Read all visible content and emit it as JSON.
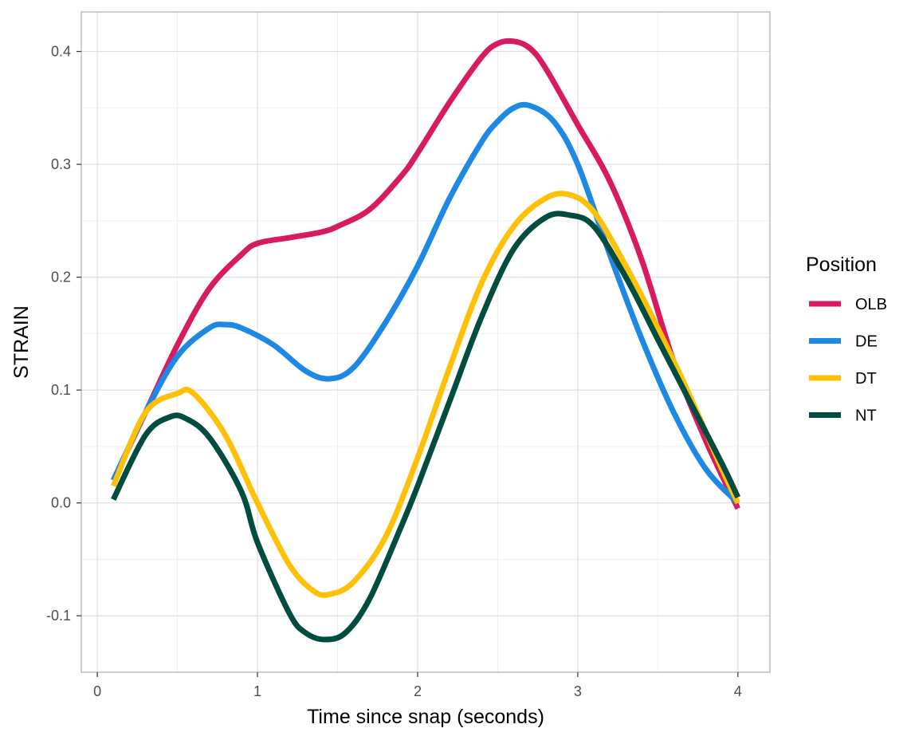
{
  "chart_data": {
    "type": "line",
    "xlabel": "Time since snap (seconds)",
    "ylabel": "STRAIN",
    "xlim": [
      -0.1,
      4.2
    ],
    "ylim": [
      -0.15,
      0.435
    ],
    "xticks": [
      0,
      1,
      2,
      3,
      4
    ],
    "xtick_labels": [
      "0",
      "1",
      "2",
      "3",
      "4"
    ],
    "yticks": [
      -0.1,
      0.0,
      0.1,
      0.2,
      0.3,
      0.4
    ],
    "ytick_labels": [
      "-0.1",
      "0.0",
      "0.1",
      "0.2",
      "0.3",
      "0.4"
    ],
    "grid": true,
    "legend_title": "Position",
    "legend_position": "right",
    "series": [
      {
        "name": "OLB",
        "color": "#D81B60",
        "x": [
          0.1,
          0.3,
          0.5,
          0.7,
          0.9,
          1.0,
          1.2,
          1.4,
          1.5,
          1.7,
          1.9,
          2.0,
          2.2,
          2.4,
          2.5,
          2.6,
          2.7,
          2.8,
          3.0,
          3.2,
          3.4,
          3.6,
          3.8,
          4.0
        ],
        "y": [
          0.02,
          0.08,
          0.14,
          0.19,
          0.22,
          0.23,
          0.235,
          0.24,
          0.245,
          0.26,
          0.29,
          0.31,
          0.355,
          0.395,
          0.407,
          0.409,
          0.403,
          0.385,
          0.335,
          0.285,
          0.215,
          0.125,
          0.055,
          -0.005
        ]
      },
      {
        "name": "DE",
        "color": "#1E88E5",
        "x": [
          0.1,
          0.3,
          0.5,
          0.7,
          0.8,
          0.9,
          1.1,
          1.3,
          1.45,
          1.6,
          1.8,
          2.0,
          2.2,
          2.4,
          2.5,
          2.6,
          2.7,
          2.85,
          3.0,
          3.2,
          3.4,
          3.6,
          3.8,
          4.0
        ],
        "y": [
          0.02,
          0.08,
          0.13,
          0.155,
          0.158,
          0.155,
          0.14,
          0.117,
          0.11,
          0.12,
          0.16,
          0.21,
          0.27,
          0.32,
          0.338,
          0.35,
          0.352,
          0.338,
          0.3,
          0.22,
          0.145,
          0.08,
          0.03,
          0.0
        ]
      },
      {
        "name": "DT",
        "color": "#FFC107",
        "x": [
          0.1,
          0.3,
          0.5,
          0.6,
          0.8,
          1.0,
          1.2,
          1.35,
          1.45,
          1.6,
          1.8,
          2.0,
          2.2,
          2.4,
          2.6,
          2.8,
          2.95,
          3.1,
          3.3,
          3.5,
          3.7,
          3.9,
          4.0
        ],
        "y": [
          0.015,
          0.08,
          0.097,
          0.097,
          0.06,
          0.0,
          -0.055,
          -0.078,
          -0.081,
          -0.07,
          -0.03,
          0.04,
          0.12,
          0.195,
          0.245,
          0.27,
          0.273,
          0.258,
          0.21,
          0.155,
          0.095,
          0.03,
          0.0
        ]
      },
      {
        "name": "NT",
        "color": "#004D40",
        "x": [
          0.1,
          0.3,
          0.45,
          0.55,
          0.7,
          0.9,
          1.0,
          1.2,
          1.3,
          1.42,
          1.55,
          1.7,
          1.9,
          2.0,
          2.2,
          2.4,
          2.6,
          2.8,
          2.95,
          3.1,
          3.3,
          3.5,
          3.7,
          3.9,
          4.0
        ],
        "y": [
          0.003,
          0.06,
          0.076,
          0.075,
          0.058,
          0.01,
          -0.035,
          -0.098,
          -0.115,
          -0.121,
          -0.115,
          -0.085,
          -0.02,
          0.015,
          0.09,
          0.165,
          0.225,
          0.253,
          0.255,
          0.245,
          0.2,
          0.145,
          0.09,
          0.035,
          0.005
        ]
      }
    ]
  }
}
